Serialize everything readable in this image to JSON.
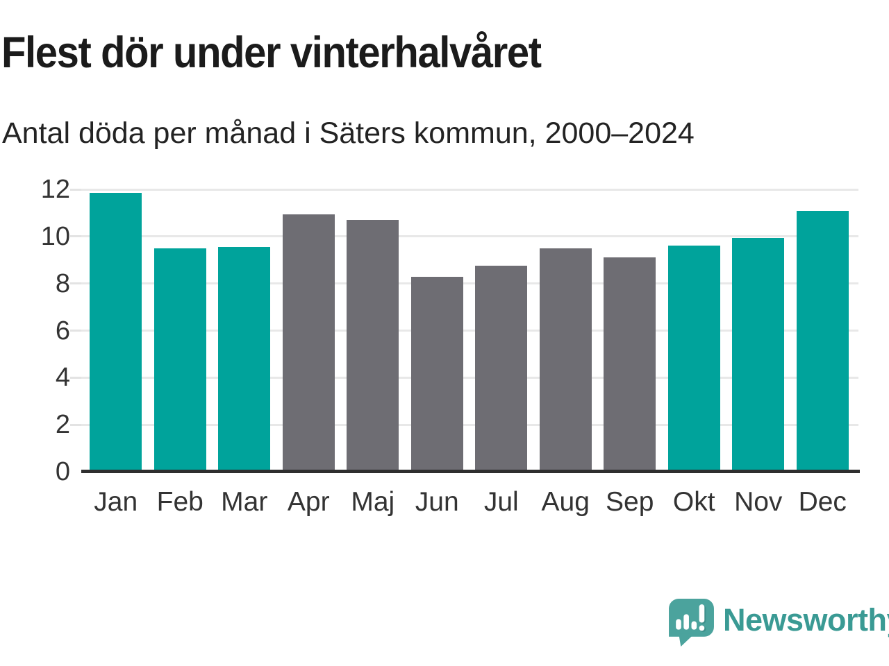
{
  "header": {
    "title": "Flest dör under vinterhalvåret",
    "subtitle": "Antal döda per månad i Säters kommun, 2000–2024"
  },
  "chart_data": {
    "type": "bar",
    "title": "Flest dör under vinterhalvåret",
    "subtitle": "Antal döda per månad i Säters kommun, 2000–2024",
    "categories": [
      "Jan",
      "Feb",
      "Mar",
      "Apr",
      "Maj",
      "Jun",
      "Jul",
      "Aug",
      "Sep",
      "Okt",
      "Nov",
      "Dec"
    ],
    "values": [
      11.85,
      9.5,
      9.55,
      10.95,
      10.7,
      8.3,
      8.75,
      9.5,
      9.1,
      9.6,
      9.95,
      11.1
    ],
    "bar_colors": [
      "#00A39B",
      "#00A39B",
      "#00A39B",
      "#6E6D73",
      "#6E6D73",
      "#6E6D73",
      "#6E6D73",
      "#6E6D73",
      "#6E6D73",
      "#00A39B",
      "#00A39B",
      "#00A39B"
    ],
    "highlight_color": "#00A39B",
    "base_color": "#6E6D73",
    "xlabel": "",
    "ylabel": "",
    "ylim": [
      0,
      12
    ],
    "yticks": [
      0,
      2,
      4,
      6,
      8,
      10,
      12
    ],
    "grid": true,
    "legend": false,
    "gridline_color": "#E8E8E8",
    "axis_color": "#2F2F2F",
    "tick_label_color": "#333333"
  },
  "footer": {
    "brand": "Newsworthy",
    "logo_icon": "newsworthy-speech-bubble-bar-chart-icon",
    "brand_color": "#3A9A94",
    "logo_bubble_color": "#4BA39D"
  }
}
